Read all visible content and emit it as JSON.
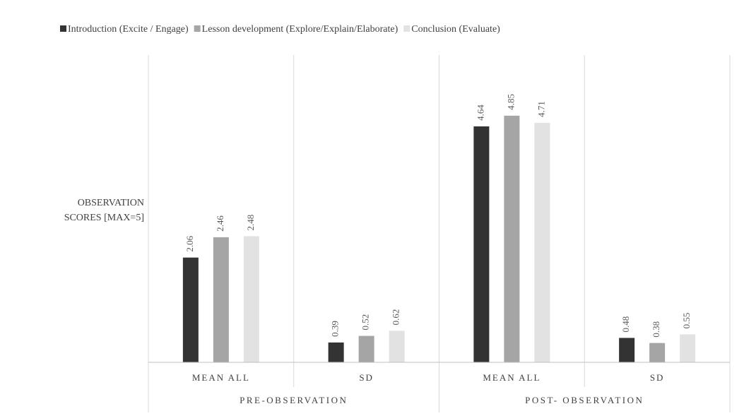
{
  "chart_data": {
    "type": "bar",
    "title": "",
    "ylabel": [
      "OBSERVATION",
      "SCORES [MAX=5]"
    ],
    "xlabel": "",
    "ylim": [
      0,
      5
    ],
    "grid": false,
    "legend_position": "top",
    "groups": [
      {
        "name": "PRE-OBSERVATION",
        "categories": [
          "MEAN ALL",
          "SD"
        ]
      },
      {
        "name": "POST- OBSERVATION",
        "categories": [
          "MEAN ALL",
          "SD"
        ]
      }
    ],
    "series": [
      {
        "name": "Introduction (Excite / Engage)",
        "color": "#333333",
        "values": [
          2.06,
          0.39,
          4.64,
          0.48
        ]
      },
      {
        "name": "Lesson development (Explore/Explain/Elaborate)",
        "color": "#a5a5a5",
        "values": [
          2.46,
          0.52,
          4.85,
          0.38
        ]
      },
      {
        "name": "Conclusion (Evaluate)",
        "color": "#e2e2e2",
        "values": [
          2.48,
          0.62,
          4.71,
          0.55
        ]
      }
    ]
  }
}
